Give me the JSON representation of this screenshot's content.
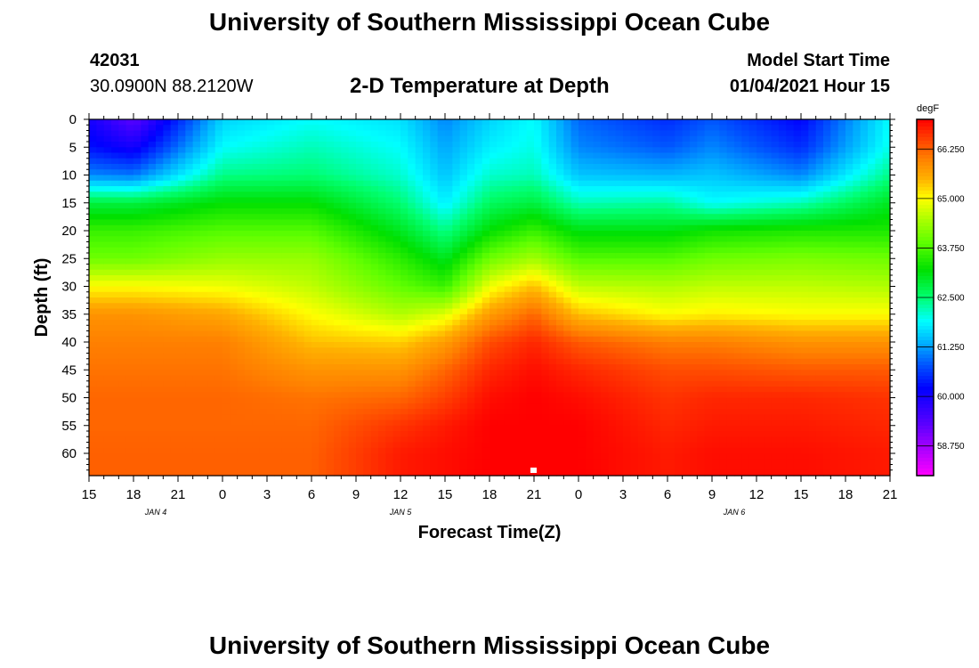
{
  "header": {
    "title_top": "University of Southern Mississippi Ocean Cube",
    "title_bottom": "University of Southern Mississippi Ocean Cube",
    "station_id": "42031",
    "station_coords": "30.0900N 88.2120W",
    "plot_title": "2-D Temperature at Depth",
    "model_label": "Model Start Time",
    "model_time": "01/04/2021 Hour 15"
  },
  "chart_data": {
    "type": "heatmap",
    "title": "2-D Temperature at Depth",
    "xlabel": "Forecast Time(Z)",
    "ylabel": "Depth (ft)",
    "units": "degF",
    "x_range_hours": [
      0,
      54
    ],
    "y_range_ft": [
      0,
      64
    ],
    "x_tick_labels": [
      "15",
      "18",
      "21",
      "0",
      "3",
      "6",
      "9",
      "12",
      "15",
      "18",
      "21",
      "0",
      "3",
      "6",
      "9",
      "12",
      "15",
      "18",
      "21"
    ],
    "y_ticks": [
      0,
      5,
      10,
      15,
      20,
      25,
      30,
      35,
      40,
      45,
      50,
      55,
      60
    ],
    "date_labels": [
      {
        "text": "JAN 4",
        "hour": 4.5
      },
      {
        "text": "JAN 5",
        "hour": 21
      },
      {
        "text": "JAN 6",
        "hour": 43.5
      }
    ],
    "colorbar": {
      "min": 58.0,
      "max": 67.0,
      "tick_values": [
        66.25,
        65.0,
        63.75,
        62.5,
        61.25,
        60.0,
        58.75
      ],
      "tick_labels": [
        "66.250",
        "65.000",
        "63.750",
        "62.500",
        "61.250",
        "60.000",
        "58.750"
      ],
      "colors": [
        {
          "v": 58.0,
          "c": "#ff00ff"
        },
        {
          "v": 59.3,
          "c": "#5a00ff"
        },
        {
          "v": 60.2,
          "c": "#0000ff"
        },
        {
          "v": 60.8,
          "c": "#0055ff"
        },
        {
          "v": 61.3,
          "c": "#00a8ff"
        },
        {
          "v": 61.9,
          "c": "#00ffff"
        },
        {
          "v": 62.5,
          "c": "#00ff70"
        },
        {
          "v": 63.2,
          "c": "#00e000"
        },
        {
          "v": 63.9,
          "c": "#60ff00"
        },
        {
          "v": 64.5,
          "c": "#b0ff00"
        },
        {
          "v": 65.0,
          "c": "#ffff00"
        },
        {
          "v": 65.5,
          "c": "#ffb000"
        },
        {
          "v": 66.0,
          "c": "#ff8000"
        },
        {
          "v": 66.5,
          "c": "#ff4000"
        },
        {
          "v": 67.0,
          "c": "#ff0000"
        }
      ]
    },
    "depth_profile_nodes": [
      {
        "hour": 0,
        "temps": [
          60.0,
          60.3,
          61.1,
          62.8,
          63.6,
          64.0,
          65.0,
          65.8,
          66.0,
          66.1,
          66.2,
          66.2,
          66.25
        ]
      },
      {
        "hour": 3,
        "temps": [
          59.3,
          60.0,
          61.0,
          62.8,
          63.6,
          64.0,
          65.0,
          65.8,
          66.0,
          66.1,
          66.2,
          66.2,
          66.25
        ]
      },
      {
        "hour": 9,
        "temps": [
          61.6,
          61.9,
          62.4,
          63.2,
          63.8,
          64.3,
          64.9,
          65.6,
          66.0,
          66.1,
          66.2,
          66.2,
          66.25
        ]
      },
      {
        "hour": 15,
        "temps": [
          61.9,
          62.2,
          62.5,
          63.2,
          63.8,
          64.3,
          64.6,
          65.0,
          65.4,
          65.8,
          66.1,
          66.2,
          66.25
        ]
      },
      {
        "hour": 21,
        "temps": [
          61.7,
          61.9,
          62.1,
          62.5,
          63.0,
          63.5,
          63.9,
          64.5,
          65.3,
          65.8,
          66.2,
          66.6,
          66.8
        ]
      },
      {
        "hour": 24,
        "temps": [
          61.1,
          61.3,
          61.5,
          61.8,
          62.4,
          63.0,
          63.6,
          64.8,
          65.7,
          66.2,
          66.5,
          66.8,
          66.9
        ]
      },
      {
        "hour": 27,
        "temps": [
          61.6,
          61.8,
          62.1,
          62.6,
          63.2,
          64.0,
          64.9,
          65.7,
          66.4,
          66.7,
          66.9,
          67.0,
          67.0
        ]
      },
      {
        "hour": 30,
        "temps": [
          61.9,
          62.0,
          62.2,
          62.8,
          63.6,
          64.4,
          65.4,
          66.2,
          66.7,
          66.9,
          67.0,
          67.0,
          67.0
        ]
      },
      {
        "hour": 33,
        "temps": [
          60.9,
          61.1,
          61.5,
          62.2,
          63.1,
          63.8,
          64.6,
          65.4,
          66.3,
          66.7,
          66.9,
          67.0,
          67.0
        ]
      },
      {
        "hour": 39,
        "temps": [
          60.5,
          60.8,
          61.4,
          62.3,
          63.1,
          63.8,
          64.5,
          65.0,
          66.0,
          66.4,
          66.6,
          66.7,
          66.8
        ]
      },
      {
        "hour": 42,
        "temps": [
          60.8,
          61.1,
          61.5,
          61.9,
          63.3,
          64.0,
          64.6,
          65.1,
          66.0,
          66.4,
          66.7,
          66.8,
          66.9
        ]
      },
      {
        "hour": 48,
        "temps": [
          60.2,
          60.5,
          61.1,
          62.2,
          63.4,
          64.1,
          64.6,
          65.0,
          65.8,
          66.3,
          66.7,
          66.8,
          66.9
        ]
      },
      {
        "hour": 54,
        "temps": [
          61.9,
          62.0,
          62.4,
          63.0,
          63.4,
          64.0,
          64.5,
          65.0,
          65.8,
          66.3,
          66.6,
          66.7,
          66.8
        ]
      }
    ]
  }
}
